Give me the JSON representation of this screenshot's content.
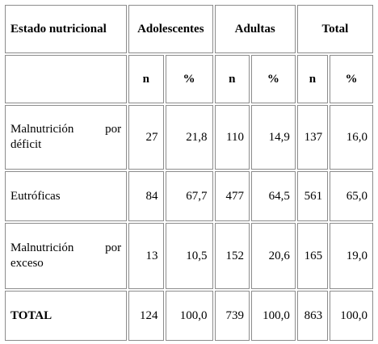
{
  "table": {
    "header": {
      "estado": "Estado nutricional",
      "adolescentes": "Adolescentes",
      "adultas": "Adultas",
      "total": "Total"
    },
    "subheader": [
      "n",
      "%",
      "n",
      "%",
      "n",
      "%"
    ],
    "rows": [
      {
        "label_line1_a": "Malnutrición",
        "label_line1_b": "por",
        "label_line2": "déficit",
        "values": [
          "27",
          "21,8",
          "110",
          "14,9",
          "137",
          "16,0"
        ]
      },
      {
        "label": "Eutróficas",
        "values": [
          "84",
          "67,7",
          "477",
          "64,5",
          "561",
          "65,0"
        ]
      },
      {
        "label_line1_a": "Malnutrición",
        "label_line1_b": "por",
        "label_line2": "exceso",
        "values": [
          "13",
          "10,5",
          "152",
          "20,6",
          "165",
          "19,0"
        ]
      },
      {
        "label": "TOTAL",
        "values": [
          "124",
          "100,0",
          "739",
          "100,0",
          "863",
          "100,0"
        ]
      }
    ]
  }
}
